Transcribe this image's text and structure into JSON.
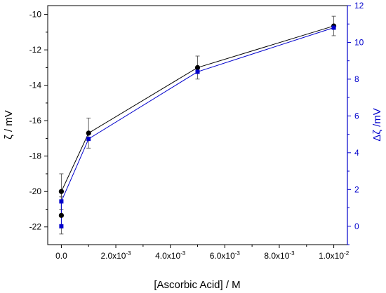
{
  "chart_data": {
    "type": "line",
    "xlabel": "[Ascorbic Acid] / M",
    "ylabel_left": "ζ / mV",
    "ylabel_right": "Δζ /mV",
    "xlim": [
      -0.0005,
      0.0105
    ],
    "ylim_left": [
      -23,
      -9.5
    ],
    "ylim_right": [
      -1,
      12
    ],
    "x_ticks": [
      {
        "value": 0,
        "label": "0.0"
      },
      {
        "value": 0.002,
        "mant": "2.0x10",
        "exp": "-3"
      },
      {
        "value": 0.004,
        "mant": "4.0x10",
        "exp": "-3"
      },
      {
        "value": 0.006,
        "mant": "6.0x10",
        "exp": "-3"
      },
      {
        "value": 0.008,
        "mant": "8.0x10",
        "exp": "-3"
      },
      {
        "value": 0.01,
        "mant": "1.0x10",
        "exp": "-2"
      }
    ],
    "y_left_ticks": [
      -22,
      -20,
      -18,
      -16,
      -14,
      -12,
      -10
    ],
    "y_right_ticks": [
      0,
      2,
      4,
      6,
      8,
      10,
      12
    ],
    "colors": {
      "left_axis": "#000000",
      "right_axis": "#0000cc",
      "series_zeta": "#000000",
      "series_delta": "#0000cc",
      "error_bar": "#555555"
    },
    "series": [
      {
        "axis": "left",
        "marker": "circle",
        "x": [
          0,
          0,
          0.001,
          0.005,
          0.01
        ],
        "y": [
          -21.35,
          -20.0,
          -16.7,
          -13.0,
          -10.65
        ],
        "err": [
          1.05,
          1.0,
          0.85,
          0.65,
          0.55
        ]
      },
      {
        "axis": "right",
        "marker": "square",
        "x": [
          0,
          0,
          0.001,
          0.005,
          0.01
        ],
        "y": [
          0.0,
          1.35,
          4.75,
          8.4,
          10.8
        ]
      }
    ]
  }
}
